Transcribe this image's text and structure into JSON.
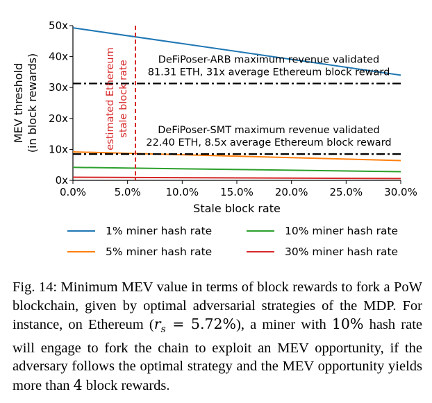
{
  "chart_data": {
    "type": "line",
    "xlabel": "Stale block rate",
    "ylabel_line1": "MEV threshold",
    "ylabel_line2": "(in block rewards)",
    "xlim": [
      0,
      30
    ],
    "ylim": [
      0,
      50
    ],
    "xticks": [
      0,
      5,
      10,
      15,
      20,
      25,
      30
    ],
    "xtick_labels": [
      "0.0%",
      "5.0%",
      "10.0%",
      "15.0%",
      "20.0%",
      "25.0%",
      "30.0%"
    ],
    "yticks": [
      0,
      10,
      20,
      30,
      40,
      50
    ],
    "ytick_labels": [
      "0x",
      "10x",
      "20x",
      "30x",
      "40x",
      "50x"
    ],
    "x": [
      0,
      30
    ],
    "series": [
      {
        "name": "1% miner hash rate",
        "color": "#1f77b4",
        "values": [
          49.3,
          34.0
        ]
      },
      {
        "name": "5% miner hash rate",
        "color": "#ff7f0e",
        "values": [
          9.2,
          6.4
        ]
      },
      {
        "name": "10% miner hash rate",
        "color": "#2ca02c",
        "values": [
          4.2,
          2.8
        ]
      },
      {
        "name": "30% miner hash rate",
        "color": "#d62728",
        "values": [
          1.0,
          0.6
        ]
      }
    ],
    "hlines": [
      {
        "y": 31.31,
        "style": "dashdot",
        "color": "#000000",
        "label_line1": "DeFiPoser-ARB maximum revenue validated",
        "label_line2": "81.31 ETH, 31x average Ethereum block reward"
      },
      {
        "y": 8.5,
        "style": "dashdot",
        "color": "#000000",
        "label_line1": "DeFiPoser-SMT maximum revenue validated",
        "label_line2": "22.40 ETH, 8.5x average Ethereum block reward"
      }
    ],
    "vline": {
      "x": 5.72,
      "style": "dashed",
      "color": "#d62728",
      "label_line1": "estimated Ethereum",
      "label_line2": "stale block rate"
    },
    "legend_placement": "below",
    "grid": false
  },
  "caption": {
    "prefix": "Fig. 14: Minimum MEV value in terms of block rewards to fork a PoW blockchain, given by optimal adversarial strategies of the MDP. For instance, on Ethereum (",
    "math_var": "r",
    "math_sub": "s",
    "math_eq": " = 5.72%",
    "middle": "), a miner with ",
    "hash_pct": "10%",
    "middle2": " hash rate will engage to fork the chain to exploit an MEV opportunity, if the adversary follows the optimal strategy and the MEV opportunity yields more than ",
    "reward_count": "4",
    "suffix": " block rewards."
  }
}
